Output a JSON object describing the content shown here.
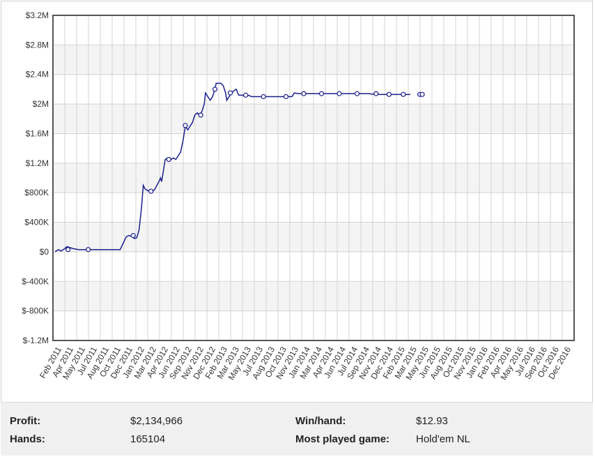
{
  "chart_data": {
    "type": "line",
    "title": "",
    "xlabel": "",
    "ylabel": "",
    "ylim": [
      -1200000,
      3200000
    ],
    "y_ticks": [
      {
        "value": 3200000,
        "label": "$3.2M"
      },
      {
        "value": 2800000,
        "label": "$2.8M"
      },
      {
        "value": 2400000,
        "label": "$2.4M"
      },
      {
        "value": 2000000,
        "label": "$2M"
      },
      {
        "value": 1600000,
        "label": "$1.6M"
      },
      {
        "value": 1200000,
        "label": "$1.2M"
      },
      {
        "value": 800000,
        "label": "$800K"
      },
      {
        "value": 400000,
        "label": "$400K"
      },
      {
        "value": 0,
        "label": "$0"
      },
      {
        "value": -400000,
        "label": "$-400K"
      },
      {
        "value": -800000,
        "label": "$-800K"
      },
      {
        "value": -1200000,
        "label": "$-1.2M"
      }
    ],
    "x_tick_labels": [
      "Feb 2011",
      "Apr 2011",
      "May 2011",
      "Jul 2011",
      "Aug 2011",
      "Oct 2011",
      "Dec 2011",
      "Jan 2012",
      "Mar 2012",
      "Apr 2012",
      "Jun 2012",
      "Sep 2012",
      "Nov 2012",
      "Dec 2012",
      "Feb 2013",
      "Mar 2013",
      "May 2013",
      "Jul 2013",
      "Aug 2013",
      "Oct 2013",
      "Nov 2013",
      "Jan 2014",
      "Mar 2014",
      "Apr 2014",
      "Jun 2014",
      "Jul 2014",
      "Sep 2014",
      "Nov 2014",
      "Dec 2014",
      "Feb 2015",
      "Mar 2015",
      "May 2015",
      "Jun 2015",
      "Aug 2015",
      "Oct 2015",
      "Nov 2015",
      "Jan 2016",
      "Feb 2016",
      "Apr 2016",
      "May 2016",
      "Jul 2016",
      "Sep 2016",
      "Oct 2016",
      "Dec 2016"
    ],
    "grid": true,
    "legend": "none",
    "line_color": "#1a1f8a",
    "series": [
      {
        "values": [
          [
            0,
            0
          ],
          [
            0.3,
            30000
          ],
          [
            0.5,
            10000
          ],
          [
            0.8,
            40000
          ],
          [
            1.0,
            70000
          ],
          [
            1.2,
            60000
          ],
          [
            1.4,
            50000
          ],
          [
            1.6,
            40000
          ],
          [
            2.0,
            30000
          ],
          [
            3,
            30000
          ],
          [
            4,
            30000
          ],
          [
            5,
            30000
          ],
          [
            5.5,
            30000
          ],
          [
            6.0,
            200000
          ],
          [
            6.2,
            220000
          ],
          [
            6.5,
            210000
          ],
          [
            6.7,
            180000
          ],
          [
            6.9,
            190000
          ],
          [
            7.1,
            300000
          ],
          [
            7.3,
            600000
          ],
          [
            7.45,
            900000
          ],
          [
            7.6,
            850000
          ],
          [
            7.8,
            830000
          ],
          [
            8.0,
            820000
          ],
          [
            8.2,
            820000
          ],
          [
            8.4,
            840000
          ],
          [
            8.6,
            900000
          ],
          [
            8.8,
            960000
          ],
          [
            8.9,
            1000000
          ],
          [
            9.0,
            950000
          ],
          [
            9.1,
            1050000
          ],
          [
            9.3,
            1250000
          ],
          [
            9.5,
            1270000
          ],
          [
            9.8,
            1250000
          ],
          [
            10.0,
            1270000
          ],
          [
            10.2,
            1250000
          ],
          [
            10.4,
            1300000
          ],
          [
            10.6,
            1350000
          ],
          [
            10.8,
            1500000
          ],
          [
            10.9,
            1600000
          ],
          [
            11.0,
            1700000
          ],
          [
            11.2,
            1650000
          ],
          [
            11.4,
            1700000
          ],
          [
            11.6,
            1750000
          ],
          [
            11.8,
            1850000
          ],
          [
            12.0,
            1880000
          ],
          [
            12.2,
            1850000
          ],
          [
            12.4,
            1900000
          ],
          [
            12.6,
            2000000
          ],
          [
            12.7,
            2150000
          ],
          [
            12.9,
            2100000
          ],
          [
            13.1,
            2050000
          ],
          [
            13.3,
            2100000
          ],
          [
            13.5,
            2200000
          ],
          [
            13.6,
            2280000
          ],
          [
            13.8,
            2280000
          ],
          [
            14.0,
            2280000
          ],
          [
            14.2,
            2250000
          ],
          [
            14.4,
            2150000
          ],
          [
            14.5,
            2050000
          ],
          [
            14.7,
            2100000
          ],
          [
            14.9,
            2150000
          ],
          [
            15.1,
            2180000
          ],
          [
            15.3,
            2200000
          ],
          [
            15.5,
            2120000
          ],
          [
            15.8,
            2120000
          ],
          [
            16.0,
            2110000
          ],
          [
            16.3,
            2120000
          ],
          [
            16.6,
            2100000
          ],
          [
            17,
            2100000
          ],
          [
            18,
            2100000
          ],
          [
            19,
            2100000
          ],
          [
            20,
            2100000
          ],
          [
            20.2,
            2150000
          ],
          [
            20.5,
            2140000
          ],
          [
            21,
            2140000
          ],
          [
            22,
            2140000
          ],
          [
            23,
            2140000
          ],
          [
            24,
            2140000
          ],
          [
            25,
            2140000
          ],
          [
            26,
            2140000
          ],
          [
            26.5,
            2140000
          ],
          [
            27,
            2130000
          ],
          [
            28,
            2130000
          ],
          [
            29,
            2130000
          ],
          [
            30,
            2130000
          ]
        ],
        "markers": [
          [
            1.1,
            30000
          ],
          [
            2.8,
            30000
          ],
          [
            6.6,
            220000
          ],
          [
            8.1,
            820000
          ],
          [
            9.6,
            1250000
          ],
          [
            11.0,
            1710000
          ],
          [
            12.3,
            1850000
          ],
          [
            13.5,
            2200000
          ],
          [
            14.8,
            2150000
          ],
          [
            16.1,
            2120000
          ],
          [
            17.6,
            2100000
          ],
          [
            19.5,
            2100000
          ],
          [
            21.0,
            2140000
          ],
          [
            22.5,
            2140000
          ],
          [
            24.0,
            2140000
          ],
          [
            25.5,
            2140000
          ],
          [
            27.1,
            2140000
          ],
          [
            28.2,
            2130000
          ],
          [
            29.4,
            2130000
          ],
          [
            30.8,
            2130000
          ],
          [
            31.0,
            2130000
          ]
        ]
      }
    ]
  },
  "stats": {
    "profit_label": "Profit:",
    "profit_value": "$2,134,966",
    "hands_label": "Hands:",
    "hands_value": "165104",
    "winhand_label": "Win/hand:",
    "winhand_value": "$12.93",
    "game_label": "Most played game:",
    "game_value": "Hold'em NL"
  }
}
